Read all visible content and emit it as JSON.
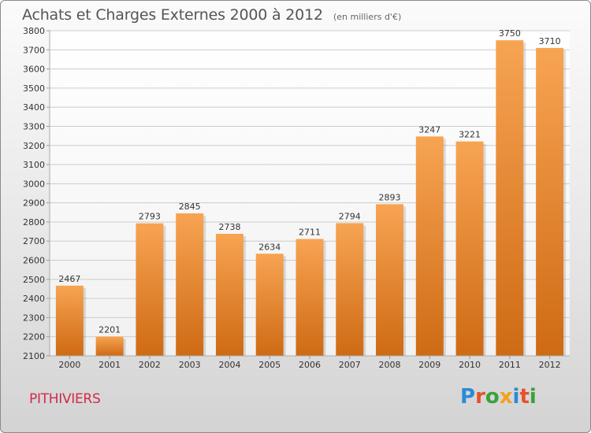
{
  "header": {
    "title": "Achats et Charges Externes 2000 à 2012",
    "subtitle": "(en milliers d'€)"
  },
  "footer": {
    "town": "PITHIVIERS",
    "logo_text": "Proxiti",
    "logo_colors": [
      "#2a8bd6",
      "#e8502a",
      "#3aa13a",
      "#f1a21a",
      "#2a8bd6",
      "#e8502a",
      "#3aa13a"
    ]
  },
  "colors": {
    "bar_top": "#f7a452",
    "bar_bottom": "#cf6a14",
    "grid": "#cccccc"
  },
  "chart_data": {
    "type": "bar",
    "title": "Achats et Charges Externes 2000 à 2012",
    "subtitle": "(en milliers d'€)",
    "categories": [
      "2000",
      "2001",
      "2002",
      "2003",
      "2004",
      "2005",
      "2006",
      "2007",
      "2008",
      "2009",
      "2010",
      "2011",
      "2012"
    ],
    "values": [
      2467,
      2201,
      2793,
      2845,
      2738,
      2634,
      2711,
      2794,
      2893,
      3247,
      3221,
      3750,
      3710
    ],
    "ylim": [
      2100,
      3800
    ],
    "yticks": [
      2100,
      2200,
      2300,
      2400,
      2500,
      2600,
      2700,
      2800,
      2900,
      3000,
      3100,
      3200,
      3300,
      3400,
      3500,
      3600,
      3700,
      3800
    ],
    "grid": true,
    "legend": "none"
  }
}
